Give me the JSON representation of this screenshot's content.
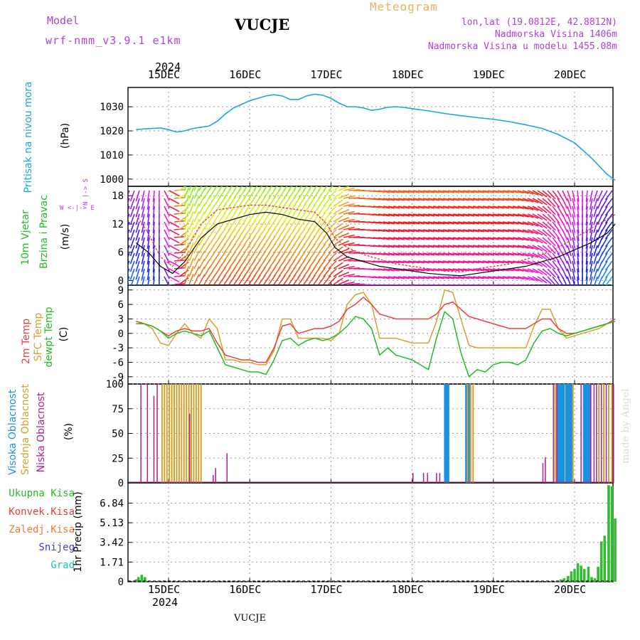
{
  "header": {
    "model_label": "Model",
    "model_name": "wrf-nmm_v3.9.1 e1km",
    "station": "VUCJE",
    "product": "Meteogram",
    "lonlat": "lon,lat (19.0812E, 42.8812N)",
    "elevation": "Nadmorska Visina 1406m",
    "model_elevation": "Nadmorska Visina u modelu 1455.08m"
  },
  "footer": {
    "station": "VUCJE",
    "credit": "made by Angel"
  },
  "colors": {
    "pressure": "#1aa6e6",
    "temp2m": "#e84040",
    "sfc": "#d9a030",
    "dewpt": "#22bb22",
    "high_cloud": "#1e90e0",
    "mid_cloud": "#d4a030",
    "low_cloud": "#b0208a",
    "precip": "#33bb33"
  },
  "time_axis": {
    "year_top": "2024",
    "year_bottom": "2024",
    "day_labels": [
      "15DEC",
      "16DEC",
      "17DEC",
      "18DEC",
      "19DEC",
      "20DEC"
    ]
  },
  "chart_data": [
    {
      "type": "line",
      "panel": "pressure",
      "title": "Pritisak na nivou mora",
      "ylabel": "(hPa)",
      "ylim": [
        997,
        1038
      ],
      "yticks": [
        "1000",
        "1010",
        "1020",
        "1030"
      ],
      "grid": true,
      "x_days": [
        14.6,
        14.7,
        14.8,
        14.9,
        15.0,
        15.1,
        15.2,
        15.3,
        15.4,
        15.5,
        15.6,
        15.7,
        15.8,
        15.9,
        16.0,
        16.1,
        16.2,
        16.3,
        16.4,
        16.5,
        16.6,
        16.7,
        16.8,
        16.9,
        17.0,
        17.1,
        17.2,
        17.3,
        17.4,
        17.5,
        17.6,
        17.7,
        17.8,
        17.9,
        18.0,
        18.2,
        18.4,
        18.6,
        18.8,
        19.0,
        19.2,
        19.4,
        19.6,
        19.8,
        20.0,
        20.1,
        20.2,
        20.3,
        20.4,
        20.5
      ],
      "series": [
        {
          "values": [
            1020.5,
            1020.8,
            1021.0,
            1021.2,
            1020.5,
            1019.5,
            1020.0,
            1021.0,
            1021.5,
            1022.0,
            1024.0,
            1027.0,
            1029.5,
            1031.0,
            1032.5,
            1033.5,
            1034.5,
            1035.0,
            1034.5,
            1033.0,
            1033.0,
            1034.5,
            1035.2,
            1034.8,
            1033.5,
            1031.5,
            1030.0,
            1030.0,
            1029.5,
            1028.5,
            1029.0,
            1029.8,
            1030.0,
            1029.7,
            1029.2,
            1028.3,
            1027.2,
            1026.3,
            1025.5,
            1024.8,
            1023.8,
            1022.5,
            1021.0,
            1018.5,
            1015.0,
            1012.0,
            1009.0,
            1005.5,
            1002.0,
            999.5
          ]
        }
      ]
    },
    {
      "type": "line",
      "panel": "wind",
      "title": "10m Vjetar",
      "subtitle": "Brzina i Pravac",
      "ylabel": "(m/s)",
      "ylim": [
        -1,
        20
      ],
      "yticks": [
        "0",
        "6",
        "12",
        "18"
      ],
      "compass": "W <-|-> E",
      "compass_ns": "N |-> S",
      "grid": true,
      "x_days": [
        14.6,
        14.75,
        14.9,
        15.05,
        15.2,
        15.4,
        15.6,
        15.8,
        16.0,
        16.2,
        16.4,
        16.6,
        16.8,
        16.95,
        17.05,
        17.2,
        17.4,
        17.6,
        17.8,
        18.0,
        18.2,
        18.4,
        18.6,
        18.8,
        19.0,
        19.2,
        19.4,
        19.6,
        19.8,
        20.0,
        20.2,
        20.4,
        20.5
      ],
      "series": [
        {
          "name": "speed",
          "values": [
            8,
            6,
            3,
            1.5,
            4,
            9,
            12,
            13,
            14,
            14.5,
            14,
            13,
            12.5,
            10,
            7,
            5,
            4,
            3,
            2.5,
            2,
            1.5,
            1.2,
            1,
            1.5,
            2,
            2.5,
            3,
            4,
            5,
            6.5,
            8,
            10,
            12
          ]
        },
        {
          "name": "gust",
          "values": [
            14,
            10,
            5,
            3,
            6,
            12,
            15,
            15.5,
            16,
            16,
            15.5,
            15,
            14.5,
            12,
            9,
            7,
            5.5,
            4.5,
            3.5,
            3,
            2.5,
            2,
            1.8,
            2.5,
            3,
            3.5,
            4.5,
            5.5,
            7,
            9,
            11,
            13,
            14
          ]
        }
      ],
      "arrow_dirs_deg": [
        200,
        190,
        180,
        95,
        20,
        30,
        35,
        35,
        35,
        35,
        35,
        35,
        35,
        40,
        60,
        85,
        95,
        100,
        100,
        100,
        100,
        100,
        100,
        100,
        100,
        100,
        110,
        130,
        150,
        170,
        190,
        210,
        220
      ]
    },
    {
      "type": "line",
      "panel": "temperature",
      "title": "2m Temp",
      "series_labels": [
        "2m Temp",
        "SFC Temp",
        "dewpt Temp"
      ],
      "ylabel": "(C)",
      "ylim": [
        -10.5,
        10
      ],
      "yticks": [
        "-9",
        "-6",
        "-3",
        "0",
        "3",
        "6",
        "9"
      ],
      "grid": true,
      "x_days": [
        14.6,
        14.7,
        14.8,
        14.9,
        15.0,
        15.1,
        15.2,
        15.3,
        15.4,
        15.5,
        15.6,
        15.7,
        15.8,
        15.9,
        16.0,
        16.1,
        16.2,
        16.3,
        16.4,
        16.5,
        16.6,
        16.7,
        16.8,
        16.9,
        17.0,
        17.1,
        17.2,
        17.3,
        17.4,
        17.5,
        17.6,
        17.7,
        17.8,
        17.9,
        18.0,
        18.1,
        18.2,
        18.3,
        18.4,
        18.5,
        18.6,
        18.7,
        18.8,
        18.9,
        19.0,
        19.1,
        19.2,
        19.3,
        19.4,
        19.5,
        19.6,
        19.7,
        19.8,
        19.9,
        20.0,
        20.1,
        20.2,
        20.3,
        20.4,
        20.5
      ],
      "series": [
        {
          "name": "2m Temp",
          "values": [
            2.5,
            2.0,
            1.5,
            0.5,
            -0.5,
            0.5,
            1.0,
            0.5,
            0.5,
            1.0,
            -2.0,
            -4.5,
            -5.0,
            -5.5,
            -5.5,
            -6.0,
            -6.0,
            -3.0,
            1.5,
            2.0,
            0.0,
            0.5,
            1.0,
            1.0,
            1.5,
            2.5,
            5.0,
            6.0,
            7.5,
            6.0,
            4.0,
            3.5,
            3.0,
            3.0,
            3.0,
            3.0,
            3.0,
            4.0,
            6.0,
            6.5,
            5.0,
            3.5,
            3.0,
            2.5,
            2.0,
            1.5,
            1.0,
            1.0,
            1.0,
            2.0,
            3.0,
            3.0,
            1.0,
            0.0,
            0.0,
            0.5,
            1.0,
            1.5,
            2.0,
            3.0
          ]
        },
        {
          "name": "SFC Temp",
          "values": [
            2.0,
            2.0,
            1.0,
            -2.0,
            -2.5,
            0.0,
            2.0,
            0.0,
            -1.0,
            3.0,
            1.0,
            -5.5,
            -5.5,
            -6.0,
            -6.0,
            -6.5,
            -6.5,
            -3.5,
            3.0,
            3.0,
            -1.0,
            -1.0,
            -1.0,
            -1.0,
            -1.5,
            0.0,
            6.0,
            8.0,
            8.5,
            6.0,
            -1.0,
            -1.0,
            -1.0,
            -1.5,
            -2.0,
            -2.0,
            -2.0,
            2.5,
            9.0,
            8.5,
            3.0,
            -2.5,
            -3.0,
            -3.0,
            -3.0,
            -3.0,
            -3.0,
            -3.0,
            -3.0,
            1.5,
            5.0,
            5.0,
            1.0,
            -1.0,
            -0.5,
            0.0,
            0.5,
            1.0,
            2.0,
            3.0
          ]
        },
        {
          "name": "dewpt Temp",
          "values": [
            2.0,
            2.0,
            1.5,
            0.5,
            -1.0,
            0.0,
            0.5,
            0.0,
            -0.5,
            0.5,
            -3.0,
            -6.5,
            -7.0,
            -7.5,
            -8.0,
            -8.0,
            -8.5,
            -5.5,
            -1.5,
            -1.0,
            -2.5,
            -1.5,
            -1.0,
            -1.5,
            -1.0,
            0.0,
            1.5,
            3.5,
            3.0,
            1.0,
            -4.5,
            -3.0,
            -4.5,
            -5.0,
            -5.5,
            -6.5,
            -7.5,
            -1.0,
            4.5,
            3.0,
            -4.0,
            -9.0,
            -7.5,
            -8.0,
            -6.5,
            -6.0,
            -6.0,
            -6.5,
            -5.5,
            -2.0,
            0.5,
            1.0,
            0.0,
            -0.5,
            0.0,
            0.5,
            1.0,
            1.5,
            2.0,
            2.5
          ]
        }
      ]
    },
    {
      "type": "bar",
      "panel": "clouds",
      "series_labels": [
        "Visoka Oblacnost",
        "Srednja Oblacnost",
        "Niska Oblacnost"
      ],
      "ylabel": "(%)",
      "ylim": [
        0,
        100
      ],
      "yticks": [
        "0",
        "25",
        "50",
        "75",
        "100"
      ],
      "grid": true,
      "series": [
        {
          "name": "Visoka Oblacnost",
          "x_days": [
            18.41,
            18.44,
            18.67,
            18.7,
            19.8,
            19.83,
            19.86,
            19.9,
            19.93,
            19.96,
            20.12,
            20.15,
            20.18
          ],
          "values": [
            100,
            100,
            100,
            100,
            100,
            100,
            100,
            100,
            100,
            100,
            100,
            100,
            100
          ]
        },
        {
          "name": "Srednja Oblacnost",
          "x_days": [
            14.92,
            14.95,
            14.98,
            15.01,
            15.04,
            15.07,
            15.1,
            15.13,
            15.16,
            15.19,
            15.22,
            15.25,
            15.28,
            15.31,
            15.34,
            15.37,
            15.4,
            18.68,
            18.72,
            18.75,
            19.76,
            19.98,
            20.3,
            20.36,
            20.42,
            20.46
          ],
          "values": [
            100,
            100,
            100,
            100,
            100,
            100,
            100,
            100,
            100,
            100,
            100,
            100,
            100,
            100,
            100,
            100,
            100,
            100,
            100,
            100,
            100,
            100,
            100,
            100,
            100,
            100
          ]
        },
        {
          "name": "Niska Oblacnost",
          "x_days": [
            14.66,
            14.74,
            14.82,
            14.86,
            15.26,
            15.55,
            15.58,
            15.72,
            18.01,
            18.14,
            18.19,
            18.3,
            18.34,
            19.61,
            19.64,
            19.74,
            19.78,
            20.08,
            20.2,
            20.24,
            20.27,
            20.33,
            20.39,
            20.48
          ],
          "values": [
            100,
            100,
            88,
            100,
            70,
            8,
            15,
            30,
            10,
            10,
            10,
            10,
            10,
            20,
            26,
            100,
            100,
            100,
            100,
            100,
            100,
            100,
            100,
            100
          ]
        }
      ]
    },
    {
      "type": "bar",
      "panel": "precip",
      "series_labels": [
        "Ukupna Kisa",
        "Konvek.Kisa",
        "Zaledj.Kisa",
        "Snijeg",
        "Grad"
      ],
      "ylabel": "1hr Precip (mm)",
      "ylim": [
        0,
        8.6
      ],
      "yticks": [
        "0",
        "1.71",
        "3.42",
        "5.13",
        "6.84"
      ],
      "grid": true,
      "series": [
        {
          "name": "Ukupna Kisa",
          "x_days": [
            14.6,
            14.63,
            14.67,
            14.71,
            19.79,
            19.83,
            19.87,
            19.92,
            19.96,
            20.0,
            20.04,
            20.08,
            20.12,
            20.17,
            20.21,
            20.25,
            20.29,
            20.33,
            20.37,
            20.42,
            20.46,
            20.5
          ],
          "values": [
            0.2,
            0.4,
            0.6,
            0.4,
            0.1,
            0.2,
            0.3,
            0.5,
            0.9,
            1.1,
            1.6,
            1.4,
            1.1,
            1.3,
            0.4,
            0.3,
            1.3,
            3.5,
            4.0,
            8.4,
            8.3,
            5.5
          ]
        }
      ]
    }
  ]
}
